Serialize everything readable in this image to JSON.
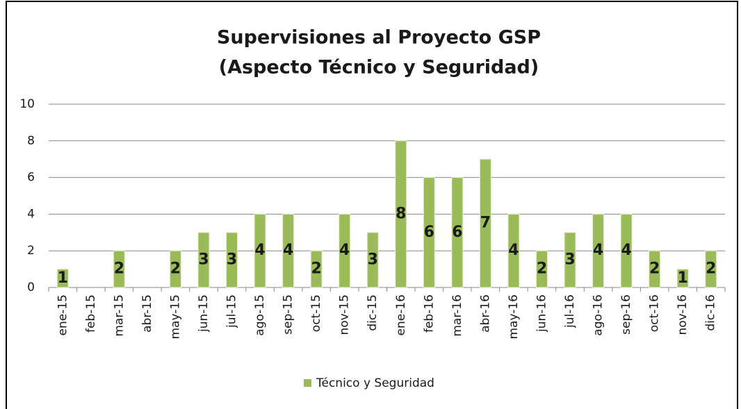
{
  "chart_data": {
    "type": "bar",
    "title": [
      "Supervisiones al Proyecto GSP",
      "(Aspecto Técnico y Seguridad)"
    ],
    "categories": [
      "ene-15",
      "feb-15",
      "mar-15",
      "abr-15",
      "may-15",
      "jun-15",
      "jul-15",
      "ago-15",
      "sep-15",
      "oct-15",
      "nov-15",
      "dic-15",
      "ene-16",
      "feb-16",
      "mar-16",
      "abr-16",
      "may-16",
      "jun-16",
      "jul-16",
      "ago-16",
      "sep-16",
      "oct-16",
      "nov-16",
      "dic-16"
    ],
    "series": [
      {
        "name": "Técnico y Seguridad",
        "color": "#9bbb59",
        "values": [
          1,
          0,
          2,
          0,
          2,
          3,
          3,
          4,
          4,
          2,
          4,
          3,
          8,
          6,
          6,
          7,
          4,
          2,
          3,
          4,
          4,
          2,
          1,
          2
        ]
      }
    ],
    "ylim": [
      0,
      10
    ],
    "yticks": [
      0,
      2,
      4,
      6,
      8,
      10
    ],
    "grid": true,
    "legend": "bottom",
    "data_labels": true
  }
}
